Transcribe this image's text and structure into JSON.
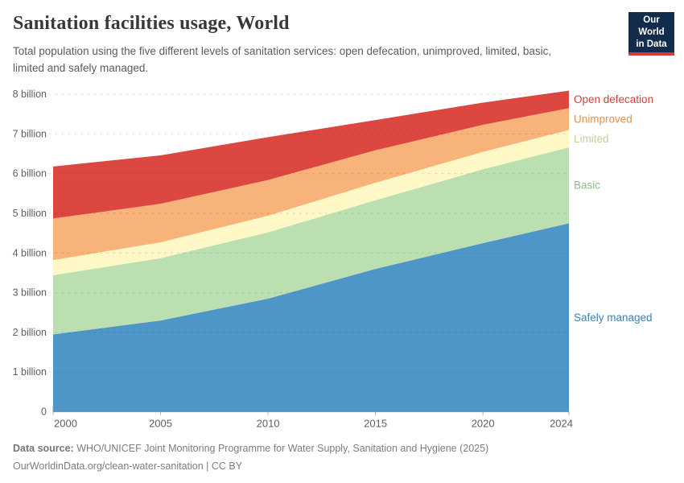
{
  "header": {
    "title": "Sanitation facilities usage, World",
    "subtitle": "Total population using the five different levels of sanitation services: open defecation, unimproved, limited, basic, limited and safely managed.",
    "logo": {
      "line1": "Our World",
      "line2": "in Data",
      "bg_color": "#132c4c",
      "bar_color": "#d93a34"
    }
  },
  "chart_data": {
    "type": "area",
    "stacked": true,
    "title": "Sanitation facilities usage, World",
    "xlabel": "",
    "ylabel": "",
    "x": [
      2000,
      2005,
      2010,
      2015,
      2020,
      2024
    ],
    "x_tick_labels": [
      "2000",
      "2005",
      "2010",
      "2015",
      "2020",
      "2024"
    ],
    "y_tick_labels": [
      "0",
      "1 billion",
      "2 billion",
      "3 billion",
      "4 billion",
      "5 billion",
      "6 billion",
      "7 billion",
      "8 billion"
    ],
    "y_unit": "billion people",
    "ylim": [
      0,
      8.4
    ],
    "grid": "dashed-horizontal",
    "legend_position": "right-of-plot",
    "series": [
      {
        "name": "Safely managed",
        "color": "#4f96c8",
        "label_color": "#3c82b4",
        "values": [
          1.95,
          2.3,
          2.85,
          3.6,
          4.25,
          4.75
        ]
      },
      {
        "name": "Basic",
        "color": "#bcdfb1",
        "label_color": "#8cbd86",
        "values": [
          1.49,
          1.57,
          1.67,
          1.73,
          1.86,
          1.91
        ]
      },
      {
        "name": "Limited",
        "color": "#fdf8c6",
        "label_color": "#c6cf9b",
        "values": [
          0.38,
          0.4,
          0.42,
          0.44,
          0.44,
          0.44
        ]
      },
      {
        "name": "Unimproved",
        "color": "#f8b37a",
        "label_color": "#e2904e",
        "values": [
          1.05,
          0.97,
          0.9,
          0.82,
          0.68,
          0.55
        ]
      },
      {
        "name": "Open defecation",
        "color": "#dc4742",
        "label_color": "#d2403a",
        "values": [
          1.31,
          1.22,
          1.08,
          0.76,
          0.56,
          0.44
        ]
      }
    ],
    "totals": [
      6.18,
      6.46,
      6.92,
      7.35,
      7.79,
      8.09
    ]
  },
  "footer": {
    "source_label": "Data source:",
    "source_text": " WHO/UNICEF Joint Monitoring Programme for Water Supply, Sanitation and Hygiene (2025)",
    "link_text": "OurWorldinData.org/clean-water-sanitation",
    "license_text": " | CC BY"
  }
}
